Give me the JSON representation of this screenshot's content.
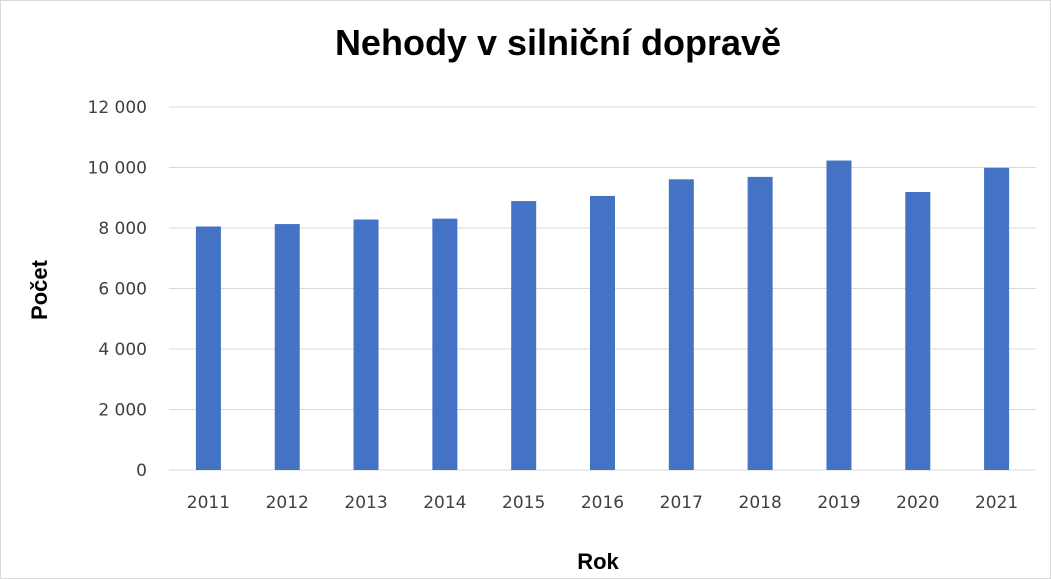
{
  "chart_data": {
    "type": "bar",
    "title": "Nehody v silniční dopravě",
    "xlabel": "Rok",
    "ylabel": "Počet",
    "categories": [
      "2011",
      "2012",
      "2013",
      "2014",
      "2015",
      "2016",
      "2017",
      "2018",
      "2019",
      "2020",
      "2021"
    ],
    "series": [
      {
        "values": [
          8050,
          8130,
          8280,
          8310,
          8890,
          9060,
          9610,
          9690,
          10230,
          9190,
          9990
        ],
        "color": "#4472c4"
      }
    ],
    "ylim": [
      0,
      12000
    ],
    "yticks": [
      0,
      2000,
      4000,
      6000,
      8000,
      10000,
      12000
    ],
    "ytick_labels": [
      "0",
      "2 000",
      "4 000",
      "6 000",
      "8 000",
      "10 000",
      "12 000"
    ],
    "grid": true,
    "legend": "none"
  }
}
